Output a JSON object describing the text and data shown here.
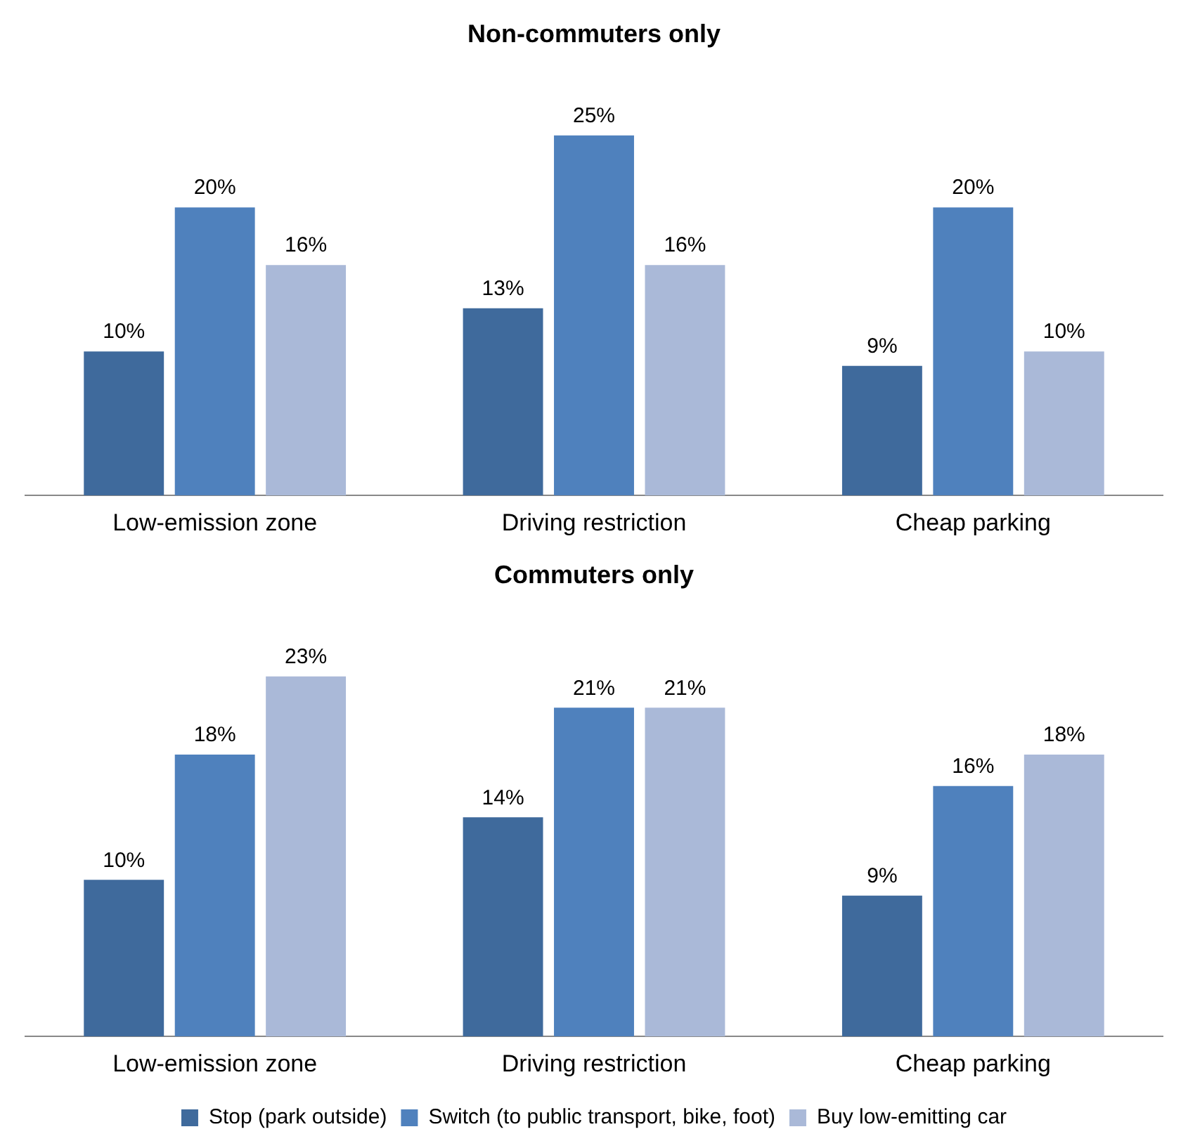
{
  "chart_data": [
    {
      "type": "bar",
      "title": "Non-commuters only",
      "categories": [
        "Low-emission zone",
        "Driving restriction",
        "Cheap parking"
      ],
      "grid": false,
      "tick_labels": "x",
      "legend": false,
      "series": [
        {
          "color": "#3f6a9c",
          "values": [
            10,
            13,
            9
          ],
          "value_labels": [
            "10%",
            "13%",
            "9%"
          ]
        },
        {
          "color": "#4f81bd",
          "values": [
            20,
            25,
            20
          ],
          "value_labels": [
            "20%",
            "25%",
            "20%"
          ]
        },
        {
          "color": "#aab9d8",
          "values": [
            16,
            16,
            10
          ],
          "value_labels": [
            "16%",
            "16%",
            "10%"
          ]
        }
      ]
    },
    {
      "type": "bar",
      "title": "Commuters only",
      "categories": [
        "Low-emission zone",
        "Driving restriction",
        "Cheap parking"
      ],
      "grid": false,
      "tick_labels": "x",
      "legend": "bottom",
      "series": [
        {
          "name": "Stop (park outside)",
          "color": "#3f6a9c",
          "values": [
            10,
            14,
            9
          ],
          "value_labels": [
            "10%",
            "14%",
            "9%"
          ]
        },
        {
          "name": "Switch (to public transport, bike, foot)",
          "color": "#4f81bd",
          "values": [
            18,
            21,
            16
          ],
          "value_labels": [
            "18%",
            "21%",
            "16%"
          ]
        },
        {
          "name": "Buy low-emitting car",
          "color": "#aab9d8",
          "values": [
            23,
            21,
            18
          ],
          "value_labels": [
            "23%",
            "21%",
            "18%"
          ]
        }
      ]
    }
  ]
}
